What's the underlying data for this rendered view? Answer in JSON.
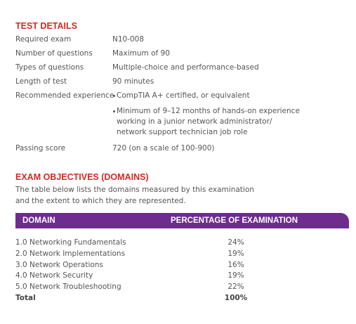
{
  "test_details": {
    "title": "TEST DETAILS",
    "rows": [
      {
        "label": "Required exam",
        "lines": [
          "N10-008"
        ]
      },
      {
        "label": "Number of questions",
        "lines": [
          "Maximum of 90"
        ]
      },
      {
        "label": "Types of questions",
        "lines": [
          "Multiple-choice and performance-based"
        ]
      },
      {
        "label": "Length of test",
        "lines": [
          "90 minutes"
        ]
      },
      {
        "label": "Recommended experience",
        "bullets": [
          [
            "CompTIA A+ certified, or equivalent"
          ],
          [
            "Minimum of 9–12 months of hands-on experience",
            "working in a junior network administrator/",
            "network support technician job role"
          ]
        ]
      },
      {
        "label": "Passing score",
        "lines": [
          "720 (on a scale of 100-900)"
        ]
      }
    ]
  },
  "exam_objectives": {
    "title": "EXAM OBJECTIVES (DOMAINS)",
    "intro": [
      "The table below lists the domains measured by this examination",
      "and the extent to which they are represented."
    ],
    "table": {
      "header": [
        "DOMAIN",
        "PERCENTAGE OF EXAMINATION"
      ],
      "rows": [
        [
          "1.0 Networking Fundamentals",
          "24%"
        ],
        [
          "2.0 Network Implementations",
          "19%"
        ],
        [
          "3.0 Network Operations",
          "16%"
        ],
        [
          "4.0 Network Security",
          "19%"
        ],
        [
          "5.0 Network Troubleshooting",
          "22%"
        ]
      ],
      "total": [
        "Total",
        "100%"
      ]
    }
  }
}
